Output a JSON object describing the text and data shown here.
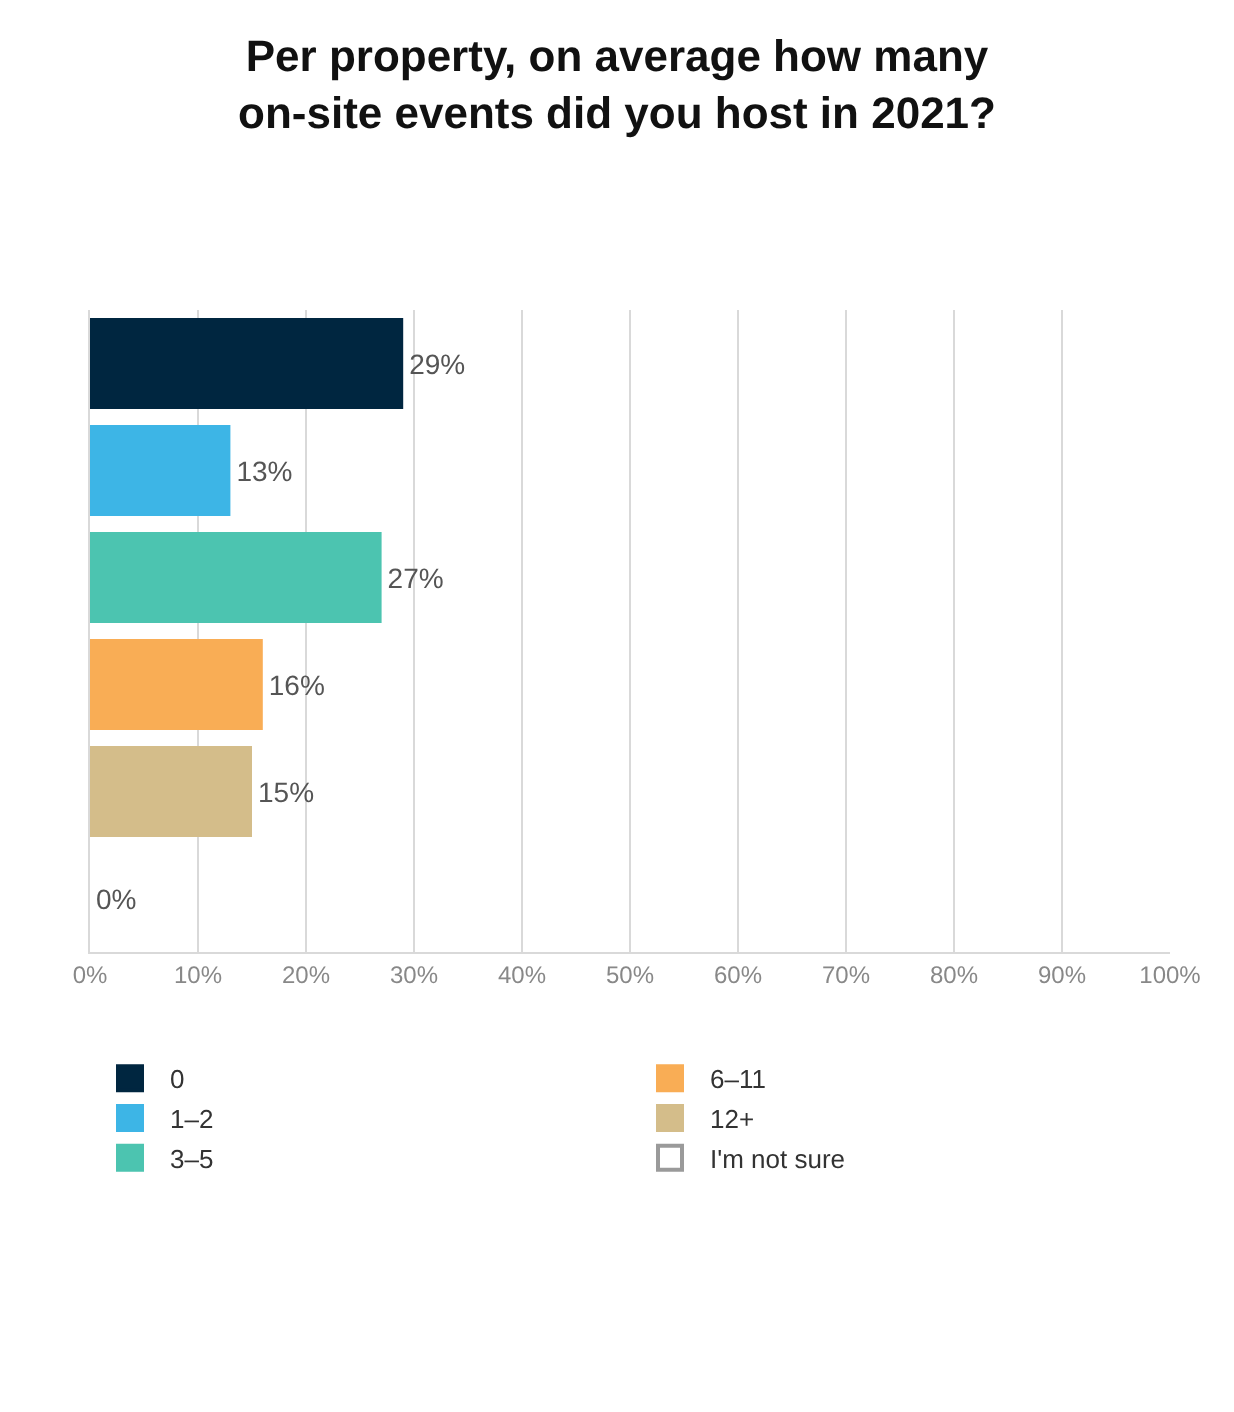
{
  "chart_data": {
    "type": "bar",
    "orientation": "horizontal",
    "stacked": true,
    "title": "Per property, on average how many\non-site events did you host in 2021?",
    "categories": [
      null,
      null,
      null,
      null,
      null,
      null
    ],
    "series": [
      {
        "name": "0",
        "color": "#002640",
        "values": [
          29,
          null,
          null,
          null,
          null,
          null
        ],
        "value_labels": [
          "29%",
          null,
          null,
          null,
          null,
          null
        ]
      },
      {
        "name": "1–2",
        "color": "#3db5e6",
        "values": [
          null,
          13,
          null,
          null,
          null,
          null
        ],
        "value_labels": [
          null,
          "13%",
          null,
          null,
          null,
          null
        ]
      },
      {
        "name": "3–5",
        "color": "#4cc4b0",
        "values": [
          null,
          null,
          27,
          null,
          null,
          null
        ],
        "value_labels": [
          null,
          null,
          "27%",
          null,
          null,
          null
        ]
      },
      {
        "name": "6–11",
        "color": "#f9ad55",
        "values": [
          null,
          null,
          null,
          16,
          null,
          null
        ],
        "value_labels": [
          null,
          null,
          null,
          "16%",
          null,
          null
        ]
      },
      {
        "name": "12+",
        "color": "#d4bd8a",
        "values": [
          null,
          null,
          null,
          null,
          15,
          null
        ],
        "value_labels": [
          null,
          null,
          null,
          null,
          "15%",
          null
        ]
      },
      {
        "name": "I'm not sure",
        "color": "#ffffff",
        "values": [
          null,
          null,
          null,
          null,
          null,
          0
        ],
        "value_labels": [
          null,
          null,
          null,
          null,
          null,
          "0%"
        ]
      }
    ],
    "xlim": [
      0,
      100
    ],
    "xticks": [
      {
        "value": 0,
        "label": "0%"
      },
      {
        "value": 10,
        "label": "10%"
      },
      {
        "value": 20,
        "label": "20%"
      },
      {
        "value": 30,
        "label": "30%"
      },
      {
        "value": 40,
        "label": "40%"
      },
      {
        "value": 50,
        "label": "50%"
      },
      {
        "value": 60,
        "label": "60%"
      },
      {
        "value": 70,
        "label": "70%"
      },
      {
        "value": 80,
        "label": "80%"
      },
      {
        "value": 90,
        "label": "90%"
      },
      {
        "value": 100,
        "label": "100%"
      }
    ],
    "grid": "x",
    "legend": "bottom",
    "tick_labels": "x"
  }
}
